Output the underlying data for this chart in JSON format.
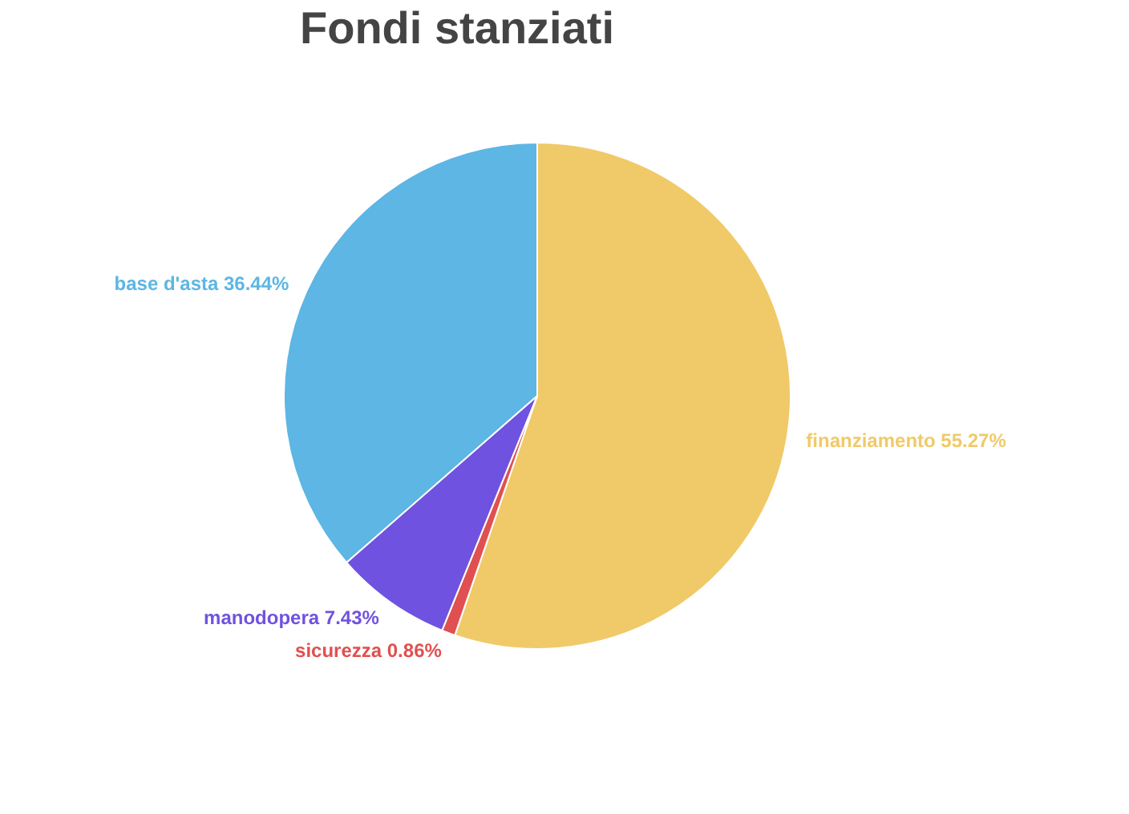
{
  "chart_data": {
    "type": "pie",
    "title": "Fondi stanziati",
    "categories": [
      "finanziamento",
      "sicurezza",
      "manodopera",
      "base d'asta"
    ],
    "values": [
      55.27,
      0.86,
      7.43,
      36.44
    ],
    "colors": [
      "#f0ca69",
      "#e05050",
      "#7052e0",
      "#5db6e4"
    ],
    "value_labels": [
      "55.27%",
      "0.86%",
      "7.43%",
      "36.44%"
    ],
    "legend": false
  }
}
